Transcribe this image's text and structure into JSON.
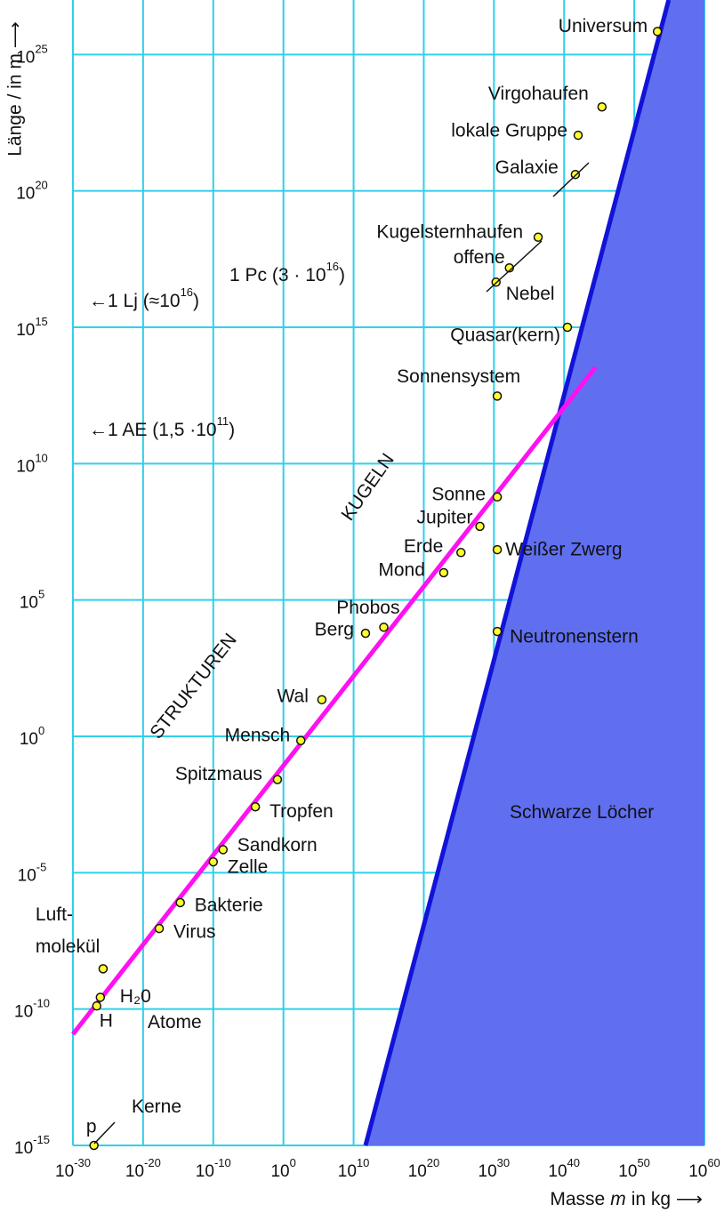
{
  "chart_data": {
    "type": "scatter",
    "xlabel": {
      "before": "Masse",
      "var": "m",
      "after": "in kg ⟶"
    },
    "ylabel": "Länge / in m ⟶",
    "log_x": true,
    "log_y": true,
    "grid": true,
    "grid_color": "#2fd0ec",
    "xlim": [
      1e-30,
      1e+60
    ],
    "ylim": [
      1e-15,
      1e+27
    ],
    "xticks": [
      {
        "value": 1e-30,
        "label": "10",
        "exponent": "-30"
      },
      {
        "value": 1e-20,
        "label": "10",
        "exponent": "-20"
      },
      {
        "value": 1e-10,
        "label": "10",
        "exponent": "-10"
      },
      {
        "value": 1,
        "label": "10",
        "exponent": "0"
      },
      {
        "value": 10000000000.0,
        "label": "10",
        "exponent": "10"
      },
      {
        "value": 1e+20,
        "label": "10",
        "exponent": "20"
      },
      {
        "value": 1e+30,
        "label": "10",
        "exponent": "30"
      },
      {
        "value": 1e+40,
        "label": "10",
        "exponent": "40"
      },
      {
        "value": 1e+50,
        "label": "10",
        "exponent": "50"
      },
      {
        "value": 1e+60,
        "label": "10",
        "exponent": "60"
      }
    ],
    "yticks": [
      {
        "value": 1e-15,
        "label": "10",
        "exponent": "-15"
      },
      {
        "value": 1e-10,
        "label": "10",
        "exponent": "-10"
      },
      {
        "value": 1e-05,
        "label": "10",
        "exponent": "-5"
      },
      {
        "value": 1,
        "label": "10",
        "exponent": "0"
      },
      {
        "value": 100000.0,
        "label": "10",
        "exponent": "5"
      },
      {
        "value": 10000000000.0,
        "label": "10",
        "exponent": "10"
      },
      {
        "value": 1000000000000000.0,
        "label": "10",
        "exponent": "15"
      },
      {
        "value": 1e+20,
        "label": "10",
        "exponent": "20"
      },
      {
        "value": 1e+25,
        "label": "10",
        "exponent": "25"
      }
    ],
    "point_color": "#ffff30",
    "labels": [
      "Universum",
      "Virgohaufen",
      "lokale Gruppe",
      "Galaxie",
      "Kugelsternhaufen",
      "offene",
      "Nebel",
      "Quasar(kern)",
      "Sonnensystem",
      "Sonne",
      "Jupiter",
      "Erde",
      "Weißer Zwerg",
      "Mond",
      "Phobos",
      "Berg",
      "Neutronenstern",
      "Wal",
      "Mensch",
      "Spitzmaus",
      "Tropfen",
      "Sandkorn",
      "Zelle",
      "Bakterie",
      "Virus",
      [
        "Luft-",
        "molekül"
      ],
      "H₂0",
      "H",
      "p"
    ],
    "label_colors": [
      "#111",
      "#111",
      "#111",
      "#111",
      "#111",
      "#111",
      "#111",
      "#111",
      "#111",
      "#111",
      "#111",
      "#111",
      "#ffffff",
      "#111",
      "#111",
      "#111",
      "#ffffff",
      "#111",
      "#111",
      "#111",
      "#111",
      "#111",
      "#111",
      "#111",
      "#111",
      "#111",
      "#111",
      "#111",
      "#111"
    ],
    "x": [
      2e+53,
      2.5e+45,
      1e+42,
      4e+41,
      2e+36,
      1.6e+32,
      2e+30,
      3e+40,
      3e+30,
      3e+30,
      1e+28,
      2e+25,
      3e+30,
      7e+22,
      200000000000000.0,
      500000000000.0,
      3e+30,
      300000.0,
      300,
      0.14,
      0.0001,
      2.5e-09,
      1e-10,
      2e-15,
      2e-18,
      2e-26,
      8e-27,
      2.5e-27,
      1e-27
    ],
    "values": [
      7e+25,
      1.2e+23,
      1.1e+22,
      4e+20,
      2e+18,
      1.5e+17,
      4.5e+16,
      1000000000000000.0,
      3000000000000.0,
      600000000.0,
      50000000.0,
      5500000.0,
      7000000.0,
      1000000.0,
      10000.0,
      6000,
      7000,
      22,
      0.7,
      0.026,
      0.0026,
      7e-05,
      2.5e-05,
      8e-07,
      9e-08,
      3e-09,
      2.7e-10,
      1.3e-10,
      1e-15
    ],
    "trend": {
      "color": "#ff10f0",
      "x": [
        1e-30,
        3e+44
      ],
      "values": [
        1.2e-11,
        34000000000000.0
      ]
    },
    "black_hole": {
      "color": "#1212d8",
      "fill": "#5f6ff0",
      "x": [
        500000000000.0,
        8e+54
      ],
      "values": [
        1e-15,
        1e+27
      ]
    },
    "annotations": [
      {
        "text": "←1 Lj (≈10",
        "sup": "16",
        "tail": ")",
        "color": "#111"
      },
      {
        "text": "1 Pc (3 · 10",
        "sup": "16",
        "tail": ")",
        "color": "#111"
      },
      {
        "text": "←1 AE (1,5 ·10",
        "sup": "11",
        "tail": ")",
        "color": "#111"
      },
      {
        "text": "Atome",
        "color": "#111"
      },
      {
        "text": "Kerne",
        "color": "#111"
      },
      {
        "text": "Schwarze Löcher",
        "color": "#ffffff"
      },
      {
        "text": "KUGELN",
        "color": "#111",
        "rotate": -55
      },
      {
        "text": "STRUKTUREN",
        "color": "#111",
        "rotate": -52
      }
    ]
  }
}
